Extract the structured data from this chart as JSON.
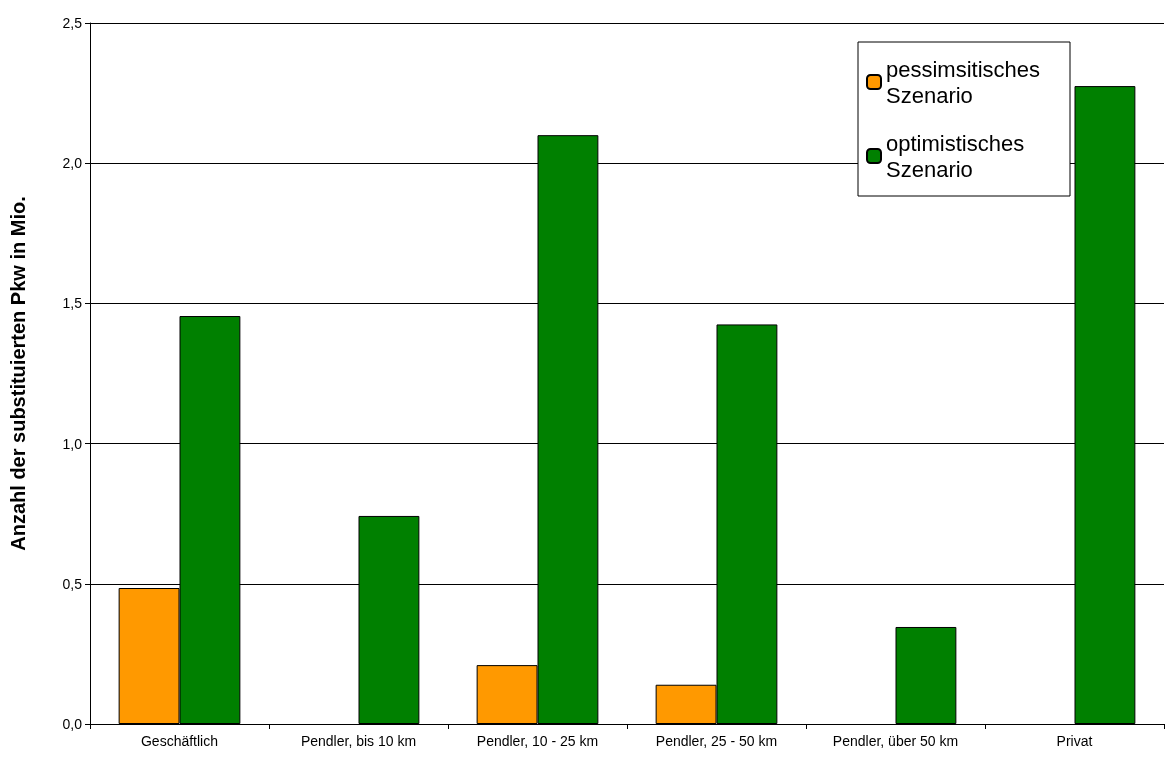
{
  "chart_data": {
    "type": "bar",
    "ylabel": "Anzahl der substituierten Pkw in Mio.",
    "categories": [
      "Geschäftlich",
      "Pendler, bis 10 km",
      "Pendler, 10 - 25 km",
      "Pendler, 25 - 50 km",
      "Pendler, über 50 km",
      "Privat"
    ],
    "series": [
      {
        "name": "pessimsitisches Szenario",
        "color": "#ff9900",
        "values": [
          0.485,
          null,
          0.21,
          0.14,
          null,
          null
        ]
      },
      {
        "name": "optimistisches Szenario",
        "color": "#008000",
        "values": [
          1.455,
          0.742,
          2.1,
          1.425,
          0.346,
          2.275
        ]
      }
    ],
    "ylim": [
      0,
      2.5
    ],
    "yticks": [
      {
        "value": 0,
        "label": "0,0"
      },
      {
        "value": 0.5,
        "label": "0,5"
      },
      {
        "value": 1,
        "label": "1,0"
      },
      {
        "value": 1.5,
        "label": "1,5"
      },
      {
        "value": 2,
        "label": "2,0"
      },
      {
        "value": 2.5,
        "label": "2,5"
      }
    ],
    "grid": "y",
    "legend": "top right"
  }
}
